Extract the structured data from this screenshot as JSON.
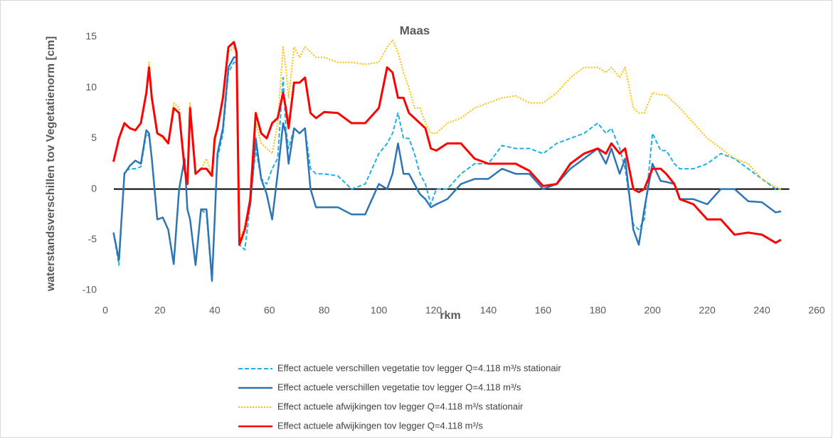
{
  "chart_data": {
    "type": "line",
    "title": "Maas",
    "x_label": "rkm",
    "y_label": "waterstandsverschillen tov Vegetatienorm [cm]",
    "x": [
      3,
      5,
      7,
      9,
      11,
      13,
      15,
      16,
      17,
      19,
      21,
      23,
      25,
      27,
      29,
      30,
      31,
      33,
      35,
      37,
      39,
      40,
      41,
      43,
      45,
      47,
      48,
      49,
      51,
      53,
      55,
      57,
      59,
      61,
      63,
      65,
      66,
      67,
      69,
      71,
      73,
      75,
      77,
      80,
      85,
      90,
      95,
      100,
      103,
      105,
      107,
      109,
      111,
      113,
      115,
      117,
      119,
      121,
      125,
      130,
      135,
      140,
      145,
      150,
      155,
      160,
      165,
      170,
      175,
      180,
      183,
      185,
      188,
      190,
      193,
      195,
      197,
      200,
      203,
      205,
      208,
      210,
      215,
      220,
      225,
      230,
      235,
      240,
      245,
      247
    ],
    "series": [
      {
        "name": "Effect actuele verschillen vegetatie tov legger Q=4.118 m³/s stationair",
        "color": "#1fb0e6",
        "style": "dashed",
        "values": [
          -4.3,
          -7.5,
          1.7,
          2,
          2,
          2.2,
          5.5,
          5.2,
          3,
          -3,
          -2.8,
          -4,
          -7.4,
          0,
          3,
          -2,
          -3,
          -7.5,
          -2,
          -2.5,
          -9.2,
          -3,
          3,
          5.5,
          11.5,
          12.5,
          12.5,
          -5.5,
          -6,
          -1.5,
          4,
          1,
          0.5,
          2,
          3,
          11,
          6,
          4,
          6,
          5.5,
          6,
          2,
          1.5,
          1.5,
          1.3,
          0,
          0.5,
          3.5,
          4.5,
          5.5,
          7.5,
          5,
          5,
          3.5,
          1.5,
          0.5,
          -1.5,
          0,
          0,
          1.5,
          2.5,
          2.5,
          4.3,
          4,
          4,
          3.5,
          4.5,
          5,
          5.5,
          6.5,
          5.5,
          6,
          4,
          2,
          -3.5,
          -4,
          -3,
          5.5,
          3.8,
          3.8,
          2.5,
          2,
          2,
          2.5,
          3.5,
          3,
          2,
          1,
          0,
          0
        ]
      },
      {
        "name": "Effect actuele verschillen vegetatie tov legger Q=4.118 m³/s",
        "color": "#2e75b6",
        "style": "solid",
        "values": [
          -4.3,
          -7,
          1.5,
          2.3,
          2.8,
          2.5,
          5.8,
          5.5,
          3,
          -3,
          -2.8,
          -4,
          -7.4,
          0,
          3,
          -2,
          -3,
          -7.5,
          -2,
          -2,
          -9,
          -3,
          3.5,
          6,
          12,
          13,
          13,
          -5.5,
          -4,
          -1.5,
          5,
          1,
          -0.5,
          -3,
          1.5,
          6.5,
          5.5,
          2.5,
          6,
          5.5,
          6,
          0,
          -1.8,
          -1.8,
          -1.8,
          -2.5,
          -2.5,
          0.5,
          0,
          1.5,
          4.5,
          1.5,
          1.5,
          0.5,
          -0.5,
          -1,
          -1.8,
          -1.5,
          -1,
          0.5,
          1,
          1,
          2,
          1.5,
          1.5,
          0,
          0.5,
          2,
          3,
          4,
          2.5,
          4,
          1.5,
          3,
          -4,
          -5.5,
          -2,
          2.5,
          0.8,
          0.7,
          0.5,
          -1,
          -1,
          -1.5,
          0,
          0,
          -1.2,
          -1.3,
          -2.3,
          -2.2
        ]
      },
      {
        "name": "Effect actuele afwijkingen tov legger Q=4.118 m³/s stationair",
        "color": "#ffc000",
        "style": "dotted",
        "values": [
          2.7,
          5,
          6.3,
          6,
          5.8,
          6.5,
          9.5,
          12.5,
          9,
          5.5,
          5,
          4.5,
          8.5,
          8,
          2,
          0.5,
          8.5,
          1.5,
          2,
          3,
          1.3,
          4.5,
          6,
          9,
          13.5,
          14,
          13,
          -5,
          -3.5,
          -1,
          6.5,
          4.5,
          4,
          3.5,
          6.5,
          14,
          12,
          9,
          14,
          13,
          14,
          13.5,
          13,
          13,
          12.5,
          12.5,
          12.3,
          12.5,
          14,
          14.7,
          13.5,
          11.5,
          10,
          8,
          8,
          6.5,
          5.5,
          5.5,
          6.5,
          7,
          8,
          8.5,
          9,
          9.2,
          8.5,
          8.5,
          9.5,
          11,
          12,
          12,
          11.5,
          12,
          11,
          12,
          8,
          7.5,
          7.5,
          9.5,
          9.3,
          9.3,
          8.5,
          8,
          6.5,
          5,
          4,
          3,
          2.5,
          1,
          0.2,
          0
        ]
      },
      {
        "name": "Effect actuele afwijkingen tov legger Q=4.118 m³/s",
        "color": "#ff0000",
        "style": "solid",
        "values": [
          2.7,
          5,
          6.5,
          6,
          5.8,
          6.5,
          9.5,
          12,
          9,
          5.5,
          5.2,
          4.5,
          8,
          7.5,
          2,
          0.5,
          8,
          1.5,
          2,
          2,
          1.3,
          5,
          6,
          9,
          14,
          14.5,
          13.5,
          -5.5,
          -4,
          -1,
          7.5,
          5.5,
          5,
          6.5,
          7,
          9.5,
          8,
          6,
          10.5,
          10.5,
          11,
          7.5,
          7,
          7.6,
          7.5,
          6.5,
          6.5,
          8,
          12,
          11.5,
          9,
          9,
          7.5,
          7,
          6.5,
          6,
          4,
          3.8,
          4.5,
          4.5,
          3,
          2.5,
          2.5,
          2.5,
          1.8,
          0.3,
          0.5,
          2.5,
          3.5,
          4,
          3.5,
          4.5,
          3.5,
          4,
          0,
          -0.3,
          0,
          2,
          2,
          1.5,
          0.5,
          -1,
          -1.5,
          -3,
          -3,
          -4.5,
          -4.3,
          -4.5,
          -5.3,
          -5
        ]
      }
    ],
    "xlim": [
      0,
      260
    ],
    "xticks": [
      0,
      20,
      40,
      60,
      80,
      100,
      120,
      140,
      160,
      180,
      200,
      220,
      240,
      260
    ],
    "ylim": [
      -10,
      15
    ],
    "yticks": [
      -10,
      -5,
      0,
      5,
      10,
      15
    ],
    "grid": false
  }
}
